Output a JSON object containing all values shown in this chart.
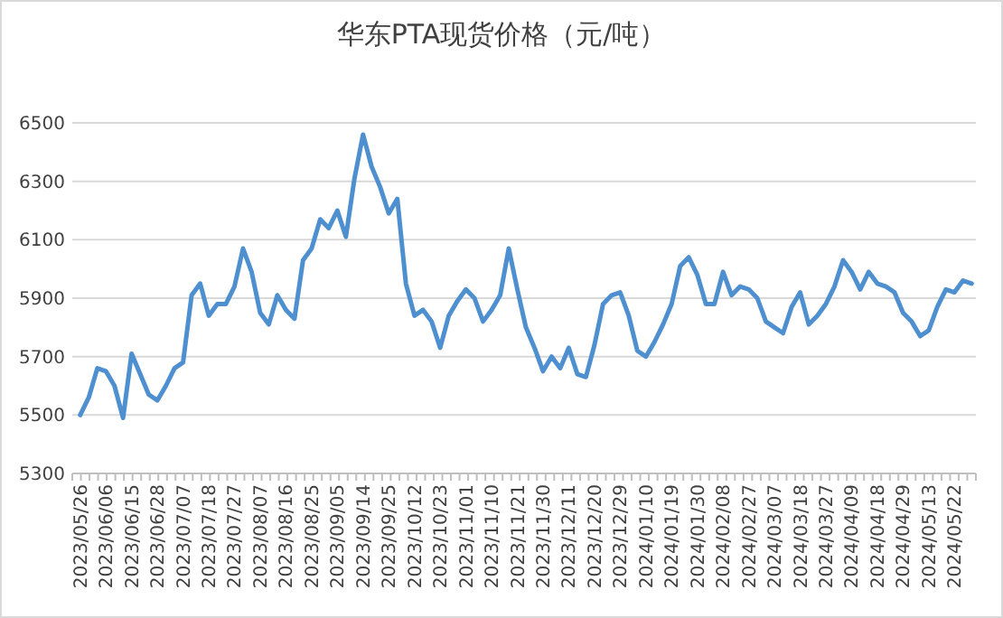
{
  "chart_data": {
    "type": "line",
    "title": "华东PTA现货价格（元/吨）",
    "categories": [
      "2023/05/26",
      null,
      null,
      "2023/06/06",
      null,
      null,
      "2023/06/15",
      null,
      null,
      "2023/06/28",
      null,
      null,
      "2023/07/07",
      null,
      null,
      "2023/07/18",
      null,
      null,
      "2023/07/27",
      null,
      null,
      "2023/08/07",
      null,
      null,
      "2023/08/16",
      null,
      null,
      "2023/08/25",
      null,
      null,
      "2023/09/05",
      null,
      null,
      "2023/09/14",
      null,
      null,
      "2023/09/25",
      null,
      null,
      "2023/10/12",
      null,
      null,
      "2023/10/23",
      null,
      null,
      "2023/11/01",
      null,
      null,
      "2023/11/10",
      null,
      null,
      "2023/11/21",
      null,
      null,
      "2023/11/30",
      null,
      null,
      "2023/12/11",
      null,
      null,
      "2023/12/20",
      null,
      null,
      "2023/12/29",
      null,
      null,
      "2024/01/10",
      null,
      null,
      "2024/01/19",
      null,
      null,
      "2024/01/30",
      null,
      null,
      "2024/02/08",
      null,
      null,
      "2024/02/27",
      null,
      null,
      "2024/03/07",
      null,
      null,
      "2024/03/18",
      null,
      null,
      "2024/03/27",
      null,
      null,
      "2024/04/09",
      null,
      null,
      "2024/04/18",
      null,
      null,
      "2024/04/29",
      null,
      null,
      "2024/05/13",
      null,
      null,
      "2024/05/22",
      null,
      null
    ],
    "series": [
      {
        "color": "#4e8fd0",
        "values": [
          5500,
          5560,
          5660,
          5650,
          5600,
          5490,
          5710,
          5640,
          5570,
          5550,
          5600,
          5660,
          5680,
          5910,
          5950,
          5840,
          5880,
          5880,
          5940,
          6070,
          5990,
          5850,
          5810,
          5910,
          5860,
          5830,
          6030,
          6070,
          6170,
          6140,
          6200,
          6110,
          6310,
          6460,
          6350,
          6280,
          6190,
          6240,
          5950,
          5840,
          5860,
          5820,
          5730,
          5840,
          5890,
          5930,
          5900,
          5820,
          5860,
          5910,
          6070,
          5930,
          5800,
          5730,
          5650,
          5700,
          5660,
          5730,
          5640,
          5630,
          5740,
          5880,
          5910,
          5920,
          5840,
          5720,
          5700,
          5750,
          5810,
          5880,
          6010,
          6040,
          5980,
          5880,
          5880,
          5990,
          5910,
          5940,
          5930,
          5900,
          5820,
          5800,
          5780,
          5870,
          5920,
          5810,
          5840,
          5880,
          5940,
          6030,
          5990,
          5930,
          5990,
          5950,
          5940,
          5920,
          5850,
          5820,
          5770,
          5790,
          5870,
          5930,
          5920,
          5960,
          5950
        ]
      }
    ],
    "ylim": [
      5300,
      6500
    ],
    "yticks": [
      5300,
      5500,
      5700,
      5900,
      6100,
      6300,
      6500
    ],
    "grid": "y",
    "line_style": "solid",
    "marker": "none"
  }
}
